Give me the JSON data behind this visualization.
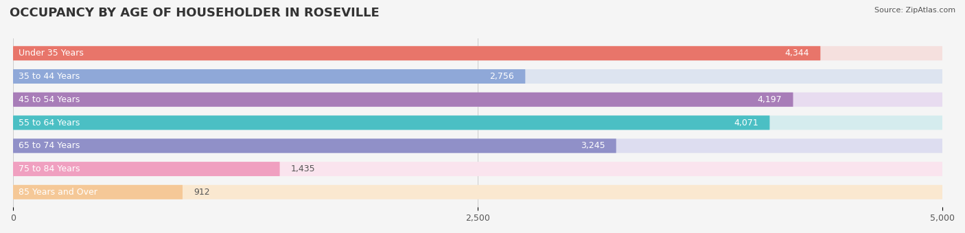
{
  "title": "OCCUPANCY BY AGE OF HOUSEHOLDER IN ROSEVILLE",
  "source": "Source: ZipAtlas.com",
  "categories": [
    "Under 35 Years",
    "35 to 44 Years",
    "45 to 54 Years",
    "55 to 64 Years",
    "65 to 74 Years",
    "75 to 84 Years",
    "85 Years and Over"
  ],
  "values": [
    4344,
    2756,
    4197,
    4071,
    3245,
    1435,
    912
  ],
  "bar_colors": [
    "#E8756A",
    "#8FA8D8",
    "#A87DB8",
    "#4BBFC4",
    "#9090C8",
    "#F0A0C0",
    "#F5C897"
  ],
  "bar_bg_colors": [
    "#F5E0DE",
    "#DDE4F0",
    "#E8DCF0",
    "#D5ECEE",
    "#DDDDF0",
    "#FAE4EE",
    "#FAE8D0"
  ],
  "xlim": [
    0,
    5000
  ],
  "xticks": [
    0,
    2500,
    5000
  ],
  "background_color": "#f0f0f0",
  "bar_bg_color": "#e8e8e8",
  "title_fontsize": 13,
  "label_fontsize": 9,
  "value_fontsize": 9
}
